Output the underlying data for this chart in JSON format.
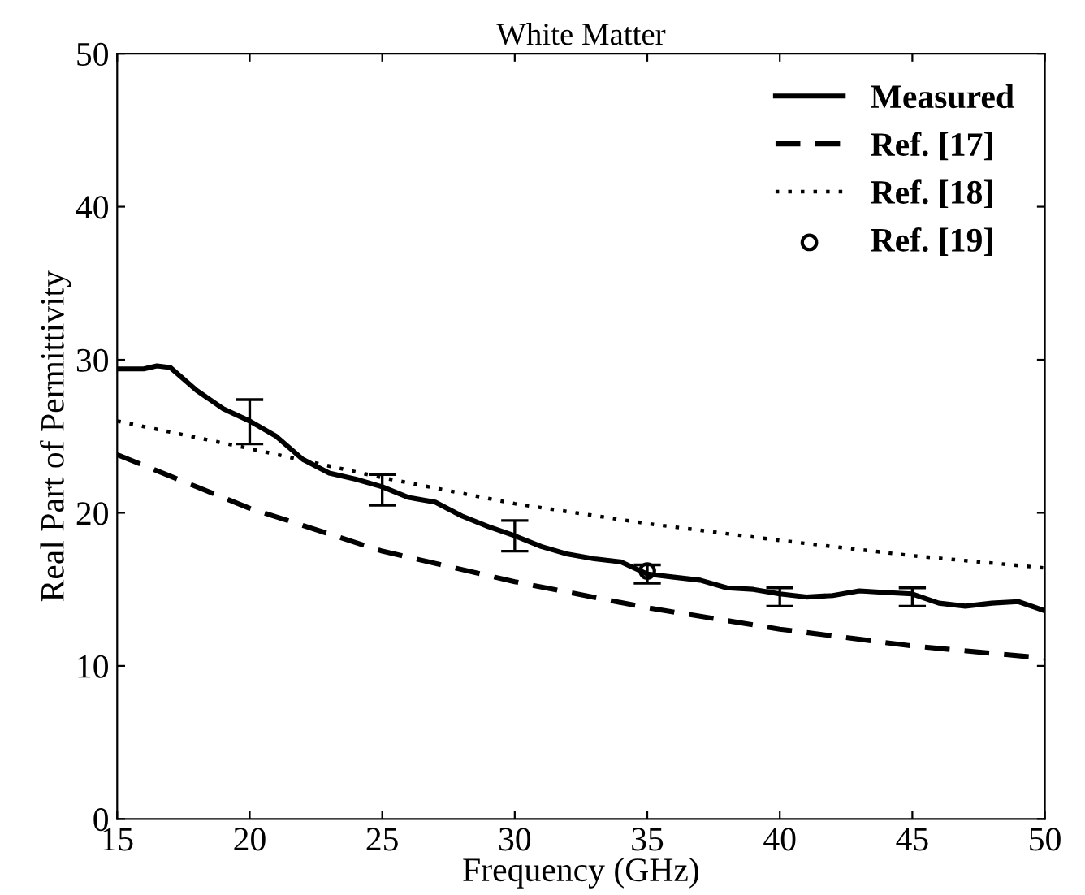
{
  "chart_data": {
    "type": "line",
    "title": "White Matter",
    "xlabel": "Frequency (GHz)",
    "ylabel": "Real Part of Permittivity",
    "xlim": [
      15,
      50
    ],
    "xticks": [
      15,
      20,
      25,
      30,
      35,
      40,
      45,
      50
    ],
    "ylim": [
      0,
      50
    ],
    "yticks": [
      0,
      10,
      20,
      30,
      40,
      50
    ],
    "grid": false,
    "legend": "top right",
    "series": [
      {
        "name": "Measured",
        "line_style": "solid",
        "color": "#000000",
        "x": [
          15,
          16,
          16.5,
          17,
          18,
          19,
          20,
          21,
          22,
          23,
          24,
          25,
          26,
          27,
          28,
          29,
          30,
          31,
          32,
          33,
          34,
          35,
          36,
          37,
          38,
          39,
          40,
          41,
          42,
          43,
          44,
          45,
          46,
          47,
          48,
          49,
          50
        ],
        "values": [
          29.4,
          29.4,
          29.6,
          29.5,
          28,
          26.8,
          26,
          25,
          23.5,
          22.6,
          22.2,
          21.7,
          21,
          20.7,
          19.8,
          19.1,
          18.5,
          17.8,
          17.3,
          17,
          16.8,
          16,
          15.8,
          15.6,
          15.1,
          15,
          14.7,
          14.5,
          14.6,
          14.9,
          14.8,
          14.7,
          14.1,
          13.9,
          14.1,
          14.2,
          13.6
        ],
        "errors": [
          null,
          null,
          null,
          null,
          null,
          null,
          [
            24.5,
            27.4
          ],
          null,
          null,
          null,
          null,
          [
            20.5,
            22.5
          ],
          null,
          null,
          null,
          null,
          [
            17.5,
            19.5
          ],
          null,
          null,
          null,
          null,
          [
            15.4,
            16.6
          ],
          null,
          null,
          null,
          null,
          [
            13.9,
            15.1
          ],
          null,
          null,
          null,
          null,
          [
            13.9,
            15.1
          ],
          null,
          null,
          null,
          null,
          null
        ]
      },
      {
        "name": "Ref. [17]",
        "line_style": "dashed",
        "color": "#000000",
        "x": [
          15,
          20,
          25,
          30,
          35,
          40,
          45,
          50
        ],
        "values": [
          23.8,
          20.3,
          17.5,
          15.5,
          13.8,
          12.4,
          11.3,
          10.5
        ]
      },
      {
        "name": "Ref. [18]",
        "line_style": "dotted",
        "color": "#000000",
        "x": [
          15,
          20,
          25,
          30,
          35,
          40,
          45,
          50
        ],
        "values": [
          26,
          24.2,
          22.3,
          20.6,
          19.3,
          18.2,
          17.2,
          16.4
        ]
      },
      {
        "name": "Ref. [19]",
        "type": "scatter",
        "marker": "circle",
        "color": "#000000",
        "x": [
          35
        ],
        "values": [
          16.2
        ]
      }
    ]
  }
}
